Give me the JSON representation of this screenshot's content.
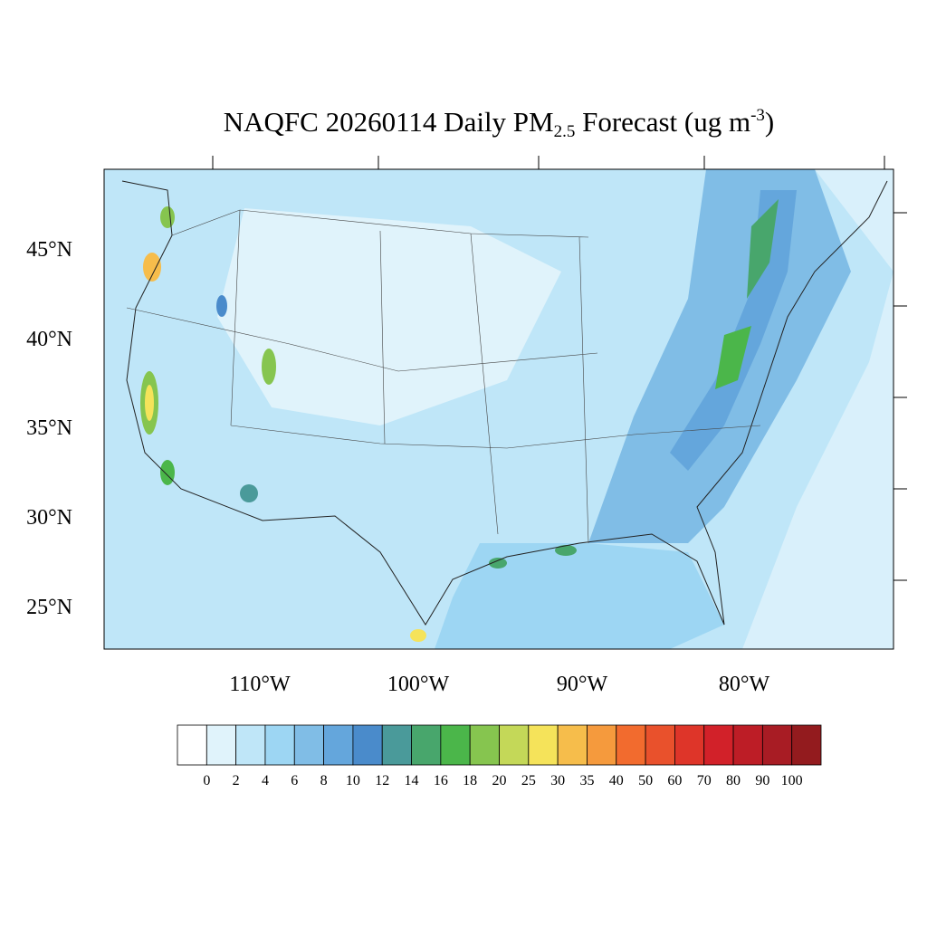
{
  "title": {
    "prefix": "NAQFC 20260114 Daily PM",
    "subscript": "2.5",
    "middle": " Forecast (ug m",
    "superscript": "-3",
    "suffix": ")"
  },
  "latitude_labels": [
    "45°N",
    "40°N",
    "35°N",
    "30°N",
    "25°N"
  ],
  "longitude_labels": [
    "110°W",
    "100°W",
    "90°W",
    "80°W"
  ],
  "colorbar": {
    "colors": [
      "#ffffff",
      "#e0f3fb",
      "#bfe6f8",
      "#9dd6f3",
      "#80bde6",
      "#64a6dc",
      "#4a8bcb",
      "#4a9a9a",
      "#48a66c",
      "#4bb64a",
      "#86c54f",
      "#c4d858",
      "#f5e35a",
      "#f6bd4b",
      "#f59a3d",
      "#f26b2e",
      "#e9512c",
      "#de3529",
      "#d22129",
      "#bd1d26",
      "#a81c24",
      "#931b1e"
    ],
    "labels": [
      0,
      2,
      4,
      6,
      8,
      10,
      12,
      14,
      16,
      18,
      20,
      25,
      30,
      35,
      40,
      50,
      60,
      70,
      80,
      90,
      100
    ]
  }
}
